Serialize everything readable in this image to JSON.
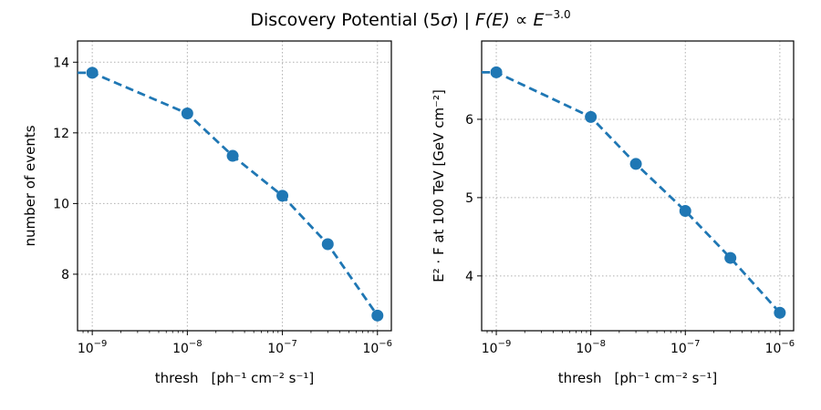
{
  "figure": {
    "title_main": "Discovery Potential (5",
    "title_sigma": "σ",
    "title_sep": ") | ",
    "title_func": "F(E) ∝ E",
    "title_exp": "−3.0"
  },
  "colors": {
    "series": "#1f77b4",
    "grid": "#b0b0b0"
  },
  "chart_data": [
    {
      "type": "line",
      "x": [
        1e-09,
        1e-08,
        3e-08,
        1e-07,
        3e-07,
        1e-06
      ],
      "values": [
        13.7,
        12.55,
        11.35,
        10.22,
        8.85,
        6.83
      ],
      "xscale": "log",
      "xlim": [
        7e-10,
        1.4e-06
      ],
      "ylim": [
        6.4,
        14.6
      ],
      "xticks": [
        1e-09,
        1e-08,
        1e-07,
        1e-06
      ],
      "xtick_exps": [
        "−9",
        "−8",
        "−7",
        "−6"
      ],
      "yticks": [
        8,
        10,
        12,
        14
      ],
      "ytick_labels": [
        "8",
        "10",
        "12",
        "14"
      ],
      "xlabel": {
        "thresh": "thresh",
        "unit": "[ph⁻¹ cm⁻² s⁻¹]"
      },
      "ylabel": {
        "text": "number of events"
      },
      "grid": true,
      "line_style": "dashed",
      "marker": "circle"
    },
    {
      "type": "line",
      "x": [
        1e-09,
        1e-08,
        3e-08,
        1e-07,
        3e-07,
        1e-06
      ],
      "values": [
        6.6,
        6.03,
        5.43,
        4.83,
        4.23,
        3.53
      ],
      "xscale": "log",
      "xlim": [
        7e-10,
        1.4e-06
      ],
      "ylim": [
        3.3,
        7.0
      ],
      "xticks": [
        1e-09,
        1e-08,
        1e-07,
        1e-06
      ],
      "xtick_exps": [
        "−9",
        "−8",
        "−7",
        "−6"
      ],
      "yticks": [
        4,
        5,
        6
      ],
      "ytick_labels": [
        "4",
        "5",
        "6"
      ],
      "xlabel": {
        "thresh": "thresh",
        "unit": "[ph⁻¹ cm⁻² s⁻¹]"
      },
      "ylabel": {
        "text": "E² · F at 100 TeV [GeV cm⁻²]"
      },
      "grid": true,
      "line_style": "dashed",
      "marker": "circle"
    }
  ]
}
